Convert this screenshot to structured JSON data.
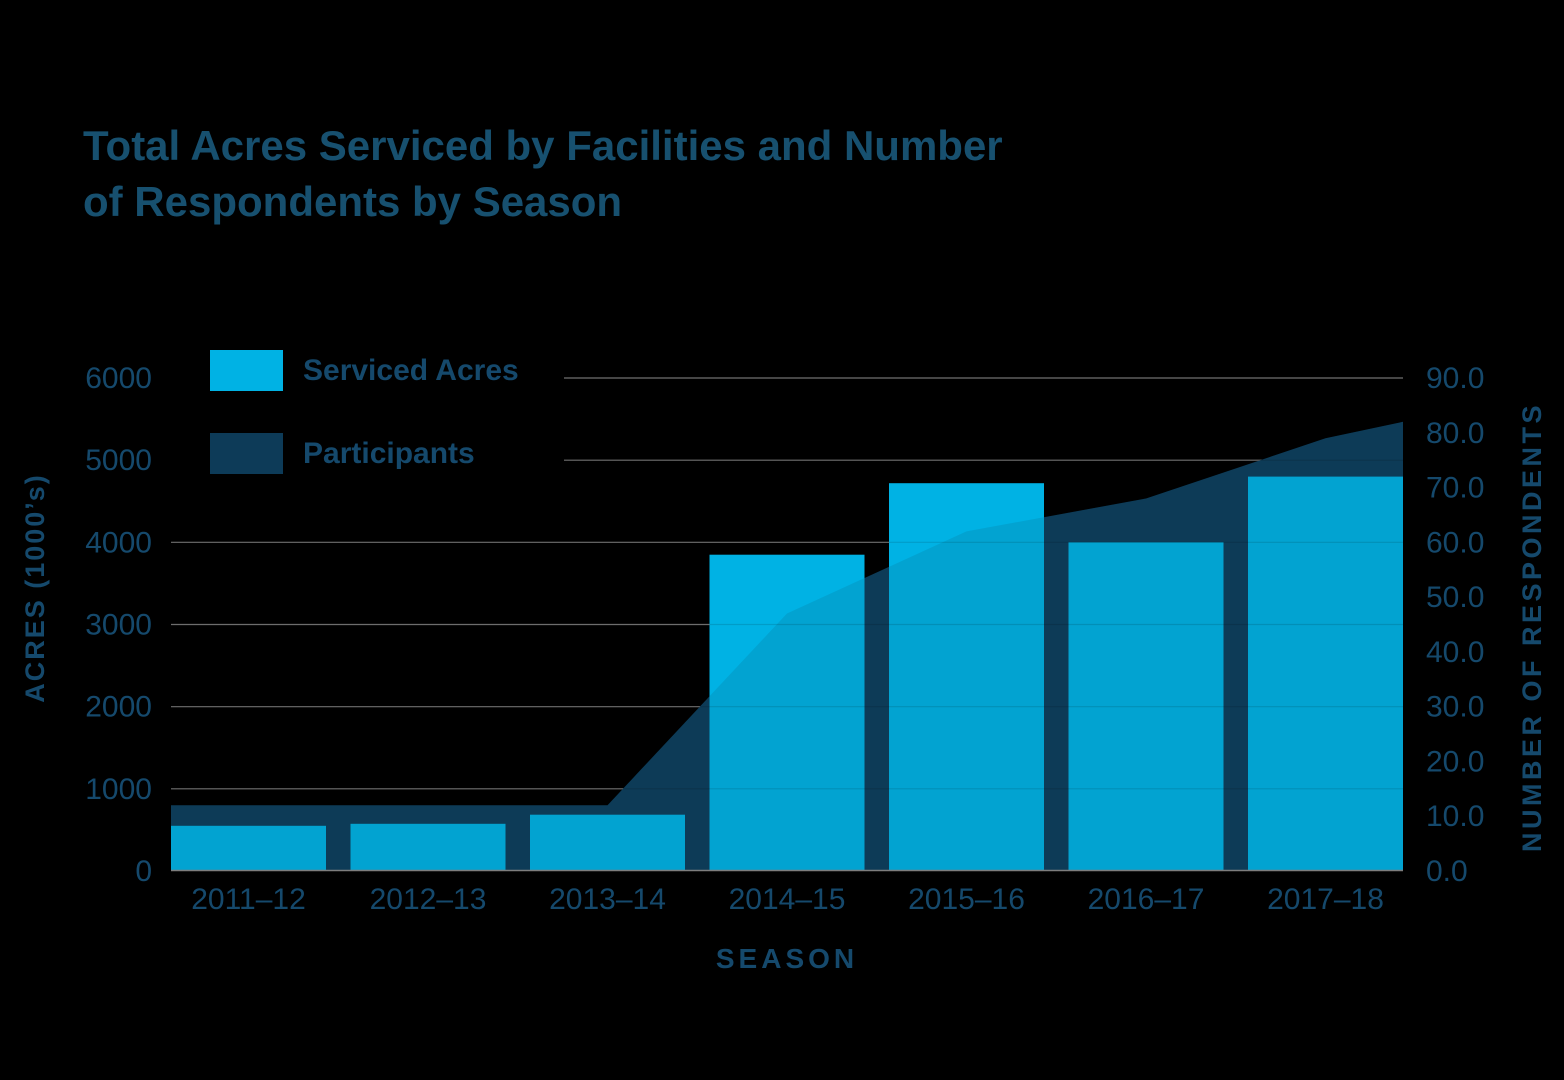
{
  "page": {
    "background": "#000000"
  },
  "title": {
    "line1": "Total Acres Serviced by Facilities and Number",
    "line2": "of Respondents by Season"
  },
  "legend": {
    "items": [
      {
        "label": "Serviced Acres",
        "swatch": "#00B2E4"
      },
      {
        "label": "Participants",
        "swatch": "#0D3B58"
      }
    ]
  },
  "axes": {
    "left": {
      "title": "ACRES (1000’s)",
      "ticks": [
        "0",
        "1000",
        "2000",
        "3000",
        "4000",
        "5000",
        "6000"
      ]
    },
    "right": {
      "title": "NUMBER OF RESPONDENTS",
      "ticks": [
        "0.0",
        "10.0",
        "20.0",
        "30.0",
        "40.0",
        "50.0",
        "60.0",
        "70.0",
        "80.0",
        "90.0"
      ]
    },
    "x": {
      "title": "SEASON"
    }
  },
  "chart_data": {
    "type": "combo",
    "categories": [
      "2011–12",
      "2012–13",
      "2013–14",
      "2014–15",
      "2015–16",
      "2016–17",
      "2017–18"
    ],
    "series": [
      {
        "name": "Serviced Acres",
        "type": "bar",
        "axis": "left",
        "values": [
          550,
          575,
          685,
          3850,
          4720,
          4000,
          4800
        ],
        "color": "#00B2E4"
      },
      {
        "name": "Participants",
        "type": "area",
        "axis": "right",
        "values": [
          12,
          12,
          12,
          47,
          62,
          68,
          79
        ],
        "right_edge_value": 82,
        "color": "#0D3B58"
      }
    ],
    "title": "Total Acres Serviced by Facilities and Number of Respondents by Season",
    "xlabel": "SEASON",
    "ylabel_left": "ACRES (1000's)",
    "ylabel_right": "NUMBER OF RESPONDENTS",
    "ylim_left": [
      0,
      6000
    ],
    "ylim_right": [
      0,
      90
    ],
    "grid": true,
    "legend_position": "top-left"
  },
  "colors": {
    "text": "#15496C",
    "title_text": "#17506F",
    "grid": "#7D7D7D",
    "bar": "#00B2E4",
    "area": "#0D3B58",
    "background": "#000000"
  }
}
